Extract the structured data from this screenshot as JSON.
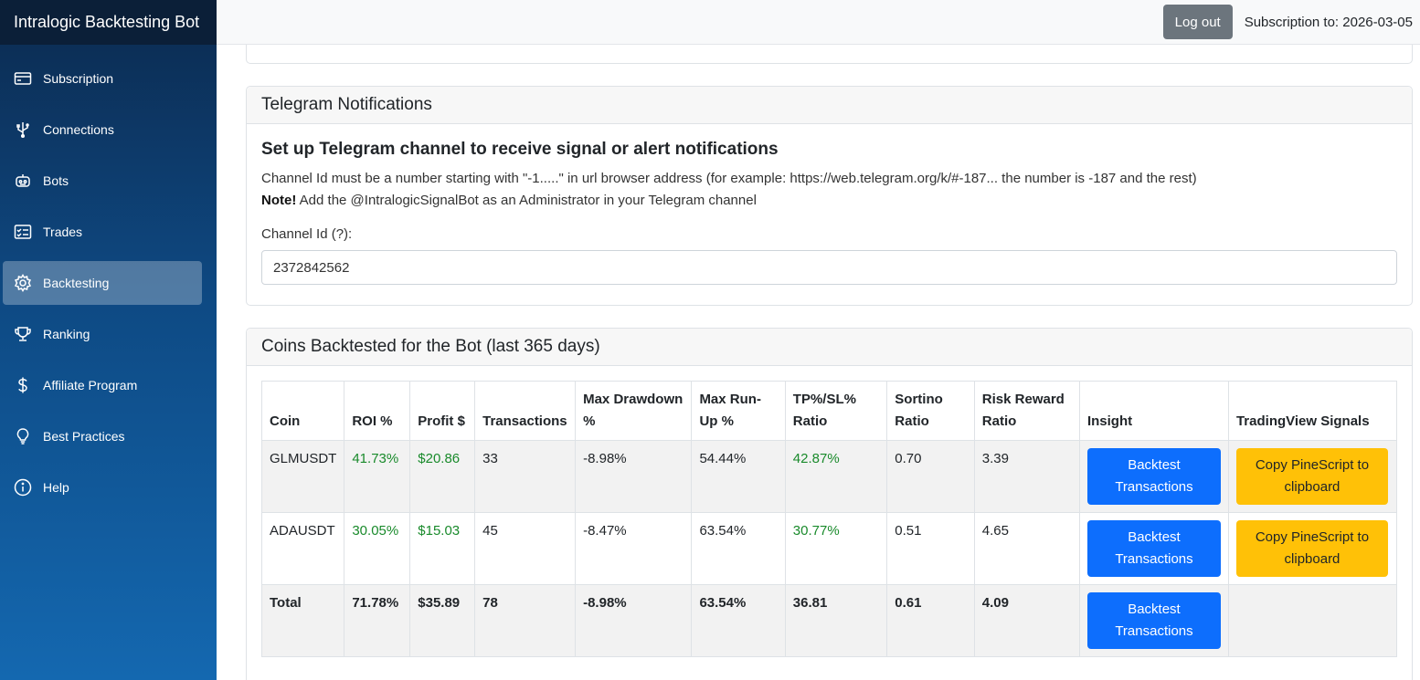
{
  "app": {
    "brand": "Intralogic Backtesting Bot"
  },
  "sidebar": {
    "items": [
      {
        "label": "Subscription",
        "icon": "credit-card-icon"
      },
      {
        "label": "Connections",
        "icon": "usb-plug-icon"
      },
      {
        "label": "Bots",
        "icon": "robot-icon"
      },
      {
        "label": "Trades",
        "icon": "checklist-icon"
      },
      {
        "label": "Backtesting",
        "icon": "gear-icon",
        "active": true
      },
      {
        "label": "Ranking",
        "icon": "trophy-icon"
      },
      {
        "label": "Affiliate Program",
        "icon": "dollar-icon"
      },
      {
        "label": "Best Practices",
        "icon": "lightbulb-icon"
      },
      {
        "label": "Help",
        "icon": "info-icon"
      }
    ]
  },
  "topbar": {
    "logout_label": "Log out",
    "subscription_text": "Subscription to: 2026-03-05"
  },
  "telegram": {
    "header": "Telegram Notifications",
    "title": "Set up Telegram channel to receive signal or alert notifications",
    "description": "Channel Id must be a number starting with \"-1.....\" in url browser address (for example: https://web.telegram.org/k/#-187... the number is -187 and the rest)",
    "note_label": "Note!",
    "note_text": " Add the @IntralogicSignalBot as an Administrator in your Telegram channel",
    "channel_label": "Channel Id (?):",
    "channel_value": "2372842562"
  },
  "coins": {
    "header": "Coins Backtested for the Bot (last 365 days)",
    "columns": [
      "Coin",
      "ROI %",
      "Profit $",
      "Transactions",
      "Max Drawdown %",
      "Max Run-Up %",
      "TP%/SL% Ratio",
      "Sortino Ratio",
      "Risk Reward Ratio",
      "Insight",
      "TradingView Signals"
    ],
    "rows": [
      {
        "coin": "GLMUSDT",
        "roi": "41.73%",
        "profit": "$20.86",
        "transactions": "33",
        "drawdown": "-8.98%",
        "runup": "54.44%",
        "tpsl": "42.87%",
        "sortino": "0.70",
        "rr": "3.39",
        "insight": "Backtest Transactions",
        "tv": "Copy PineScript to clipboard"
      },
      {
        "coin": "ADAUSDT",
        "roi": "30.05%",
        "profit": "$15.03",
        "transactions": "45",
        "drawdown": "-8.47%",
        "runup": "63.54%",
        "tpsl": "30.77%",
        "sortino": "0.51",
        "rr": "4.65",
        "insight": "Backtest Transactions",
        "tv": "Copy PineScript to clipboard"
      }
    ],
    "total": {
      "coin": "Total",
      "roi": "71.78%",
      "profit": "$35.89",
      "transactions": "78",
      "drawdown": "-8.98%",
      "runup": "63.54%",
      "tpsl": "36.81",
      "sortino": "0.61",
      "rr": "4.09",
      "insight": "Backtest Transactions"
    }
  },
  "colors": {
    "positive": "#198a2b",
    "primary_button": "#0d6efd",
    "warning_button": "#ffc107"
  }
}
